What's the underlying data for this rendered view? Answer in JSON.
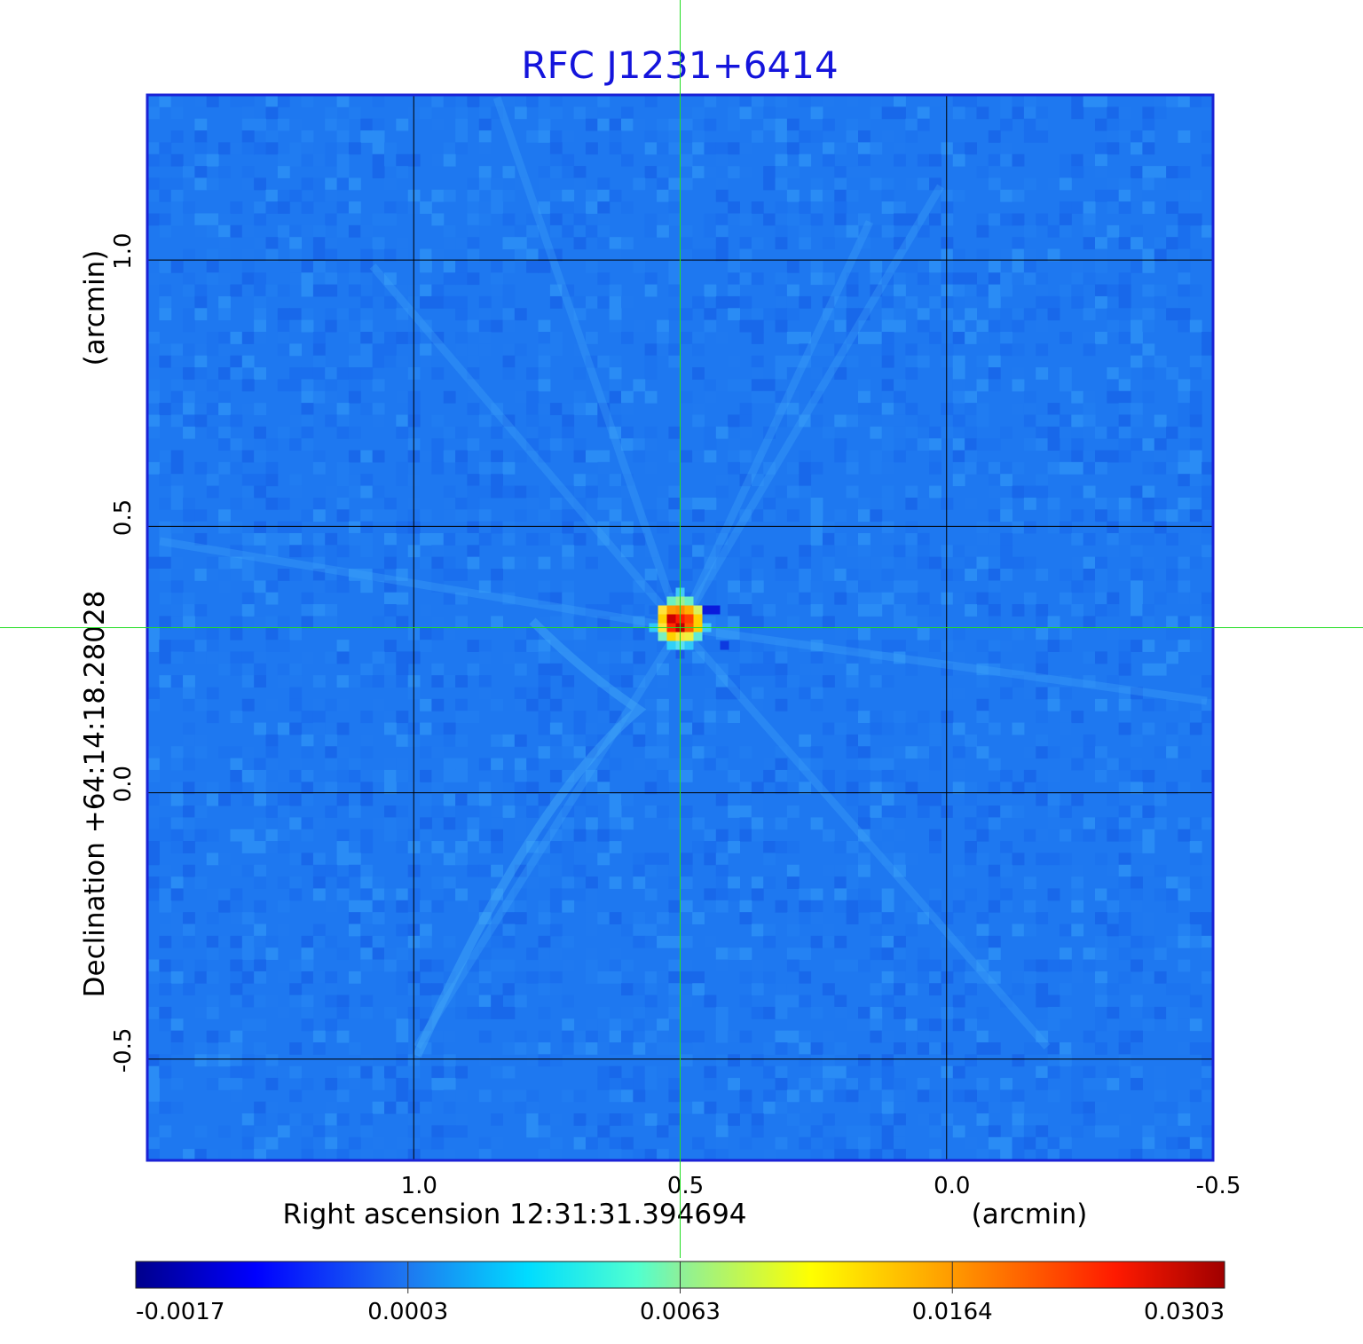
{
  "chart_data": {
    "type": "heatmap",
    "title": "RFC J1231+6414",
    "xlabel": "Right ascension  12:31:31.394694",
    "xunit": "(arcmin)",
    "ylabel": "Declination  +64:14:18.28028",
    "yunit": "(arcmin)",
    "x_axis_reversed": true,
    "xlim": [
      1.5,
      -0.5
    ],
    "ylim": [
      -0.69,
      1.31
    ],
    "x_ticks": [
      1.0,
      0.5,
      0.0,
      -0.5
    ],
    "x_tick_labels": [
      "1.0",
      "0.5",
      "0.0",
      "-0.5"
    ],
    "y_ticks": [
      1.0,
      0.5,
      0.0,
      -0.5
    ],
    "y_tick_labels": [
      "1.0",
      "0.5",
      "0.0",
      "-0.5"
    ],
    "grid": true,
    "crosshair": {
      "x": 0.5,
      "y": 0.31
    },
    "peak_source": {
      "x": 0.5,
      "y": 0.31,
      "value": 0.0303
    },
    "colormap": "jet",
    "colorbar": {
      "orientation": "horizontal",
      "placement": "bottom",
      "tick_labels": [
        "-0.0017",
        "0.0003",
        "0.0063",
        "0.0164",
        "0.0303"
      ],
      "tick_values": [
        -0.0017,
        0.0003,
        0.0063,
        0.0164,
        0.0303
      ]
    },
    "colors": {
      "title": "#1414dc",
      "frame": "#1a22d6",
      "background_field": "#1e78f0",
      "grid": "#000000",
      "crosshair": "#22dd22"
    }
  }
}
